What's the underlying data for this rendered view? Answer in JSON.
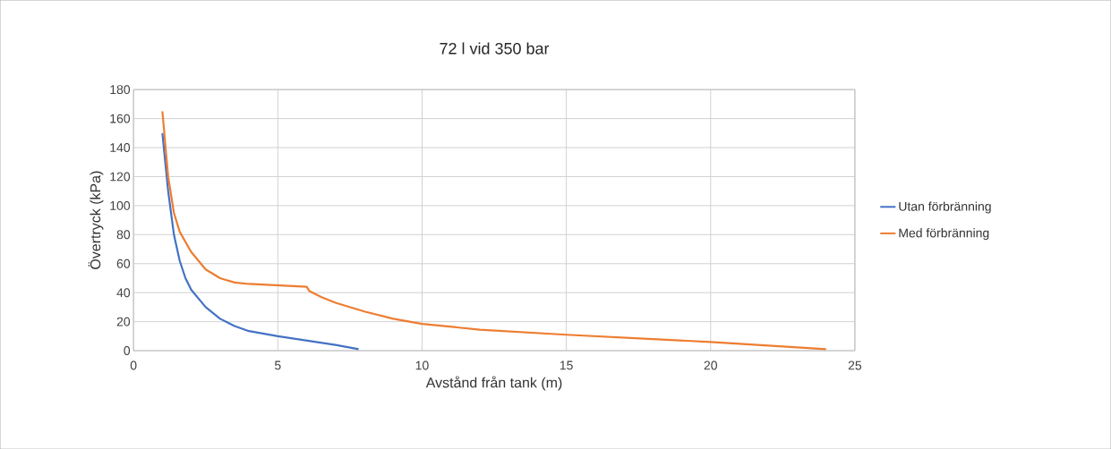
{
  "chart_data": {
    "type": "line",
    "title": "72 l vid 350 bar",
    "xlabel": "Avstånd från tank (m)",
    "ylabel": "Övertryck (kPa)",
    "xlim": [
      0,
      25
    ],
    "xticks": [
      0,
      5,
      10,
      15,
      20,
      25
    ],
    "ylim": [
      0,
      180
    ],
    "yticks": [
      0,
      20,
      40,
      60,
      80,
      100,
      120,
      140,
      160,
      180
    ],
    "grid": true,
    "legend": "right",
    "marker": "none",
    "line_style": "solid",
    "series": [
      {
        "name": "Utan förbränning",
        "color": "#4472c4",
        "x": [
          1,
          1.2,
          1.4,
          1.6,
          1.8,
          2,
          2.5,
          3,
          3.5,
          4,
          5,
          6,
          7,
          7.8
        ],
        "values": [
          150,
          110,
          80,
          62,
          50,
          42,
          30,
          22,
          17,
          13.5,
          10,
          7,
          4,
          1
        ]
      },
      {
        "name": "Med förbränning",
        "color": "#ed7d31",
        "x": [
          1,
          1.2,
          1.4,
          1.6,
          2,
          2.5,
          3,
          3.5,
          4,
          5,
          6,
          6.1,
          6.5,
          7,
          8,
          9,
          10,
          12,
          15,
          18,
          20,
          24
        ],
        "values": [
          165,
          120,
          95,
          82,
          68,
          56,
          50,
          47,
          46,
          45,
          44,
          41,
          37,
          33,
          27,
          22,
          18.5,
          14.5,
          11,
          8,
          6,
          1
        ]
      }
    ]
  }
}
